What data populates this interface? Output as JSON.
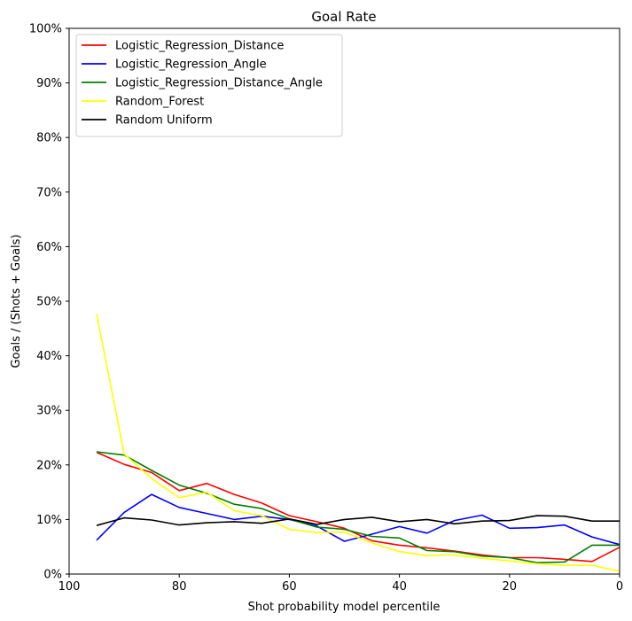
{
  "chart_data": {
    "type": "line",
    "title": "Goal Rate",
    "xlabel": "Shot probability model percentile",
    "ylabel": "Goals / (Shots + Goals)",
    "xlim": [
      100,
      0
    ],
    "ylim": [
      0,
      100
    ],
    "x_ticks": [
      100,
      80,
      60,
      40,
      20,
      0
    ],
    "y_ticks": [
      0,
      10,
      20,
      30,
      40,
      50,
      60,
      70,
      80,
      90,
      100
    ],
    "y_tick_labels": [
      "0%",
      "10%",
      "20%",
      "30%",
      "40%",
      "50%",
      "60%",
      "70%",
      "80%",
      "90%",
      "100%"
    ],
    "legend_position": "top-left",
    "x": [
      95,
      90,
      85,
      80,
      75,
      70,
      65,
      60,
      55,
      50,
      45,
      40,
      35,
      30,
      25,
      20,
      15,
      10,
      5,
      0
    ],
    "series": [
      {
        "name": "Logistic_Regression_Distance",
        "color": "#ff0000",
        "values": [
          22.3,
          20.1,
          18.6,
          15.3,
          16.6,
          14.6,
          13.0,
          10.7,
          9.6,
          8.4,
          6.1,
          5.3,
          4.8,
          4.2,
          3.5,
          3.0,
          3.0,
          2.7,
          2.3,
          4.9
        ]
      },
      {
        "name": "Logistic_Regression_Angle",
        "color": "#0000ff",
        "values": [
          6.2,
          11.3,
          14.6,
          12.2,
          11.1,
          10.0,
          10.6,
          10.0,
          8.8,
          6.0,
          7.3,
          8.7,
          7.5,
          9.8,
          10.8,
          8.4,
          8.5,
          9.0,
          6.8,
          5.4
        ]
      },
      {
        "name": "Logistic_Regression_Distance_Angle",
        "color": "#008000",
        "values": [
          22.4,
          21.8,
          19.0,
          16.3,
          14.8,
          12.8,
          12.0,
          10.1,
          8.6,
          8.2,
          6.9,
          6.6,
          4.3,
          4.1,
          3.3,
          3.0,
          2.1,
          2.2,
          5.3,
          5.3
        ]
      },
      {
        "name": "Random_Forest",
        "color": "#ffff00",
        "values": [
          47.7,
          22.0,
          17.5,
          14.0,
          15.0,
          11.6,
          10.7,
          8.2,
          7.6,
          7.7,
          5.7,
          4.1,
          3.4,
          3.5,
          2.9,
          2.4,
          1.9,
          1.6,
          1.6,
          0.5
        ]
      },
      {
        "name": "Random Uniform",
        "color": "#000000",
        "values": [
          8.9,
          10.3,
          9.9,
          9.0,
          9.4,
          9.6,
          9.3,
          10.1,
          9.1,
          10.0,
          10.4,
          9.6,
          10.0,
          9.2,
          9.7,
          9.8,
          10.7,
          10.6,
          9.7,
          9.7
        ]
      }
    ]
  }
}
